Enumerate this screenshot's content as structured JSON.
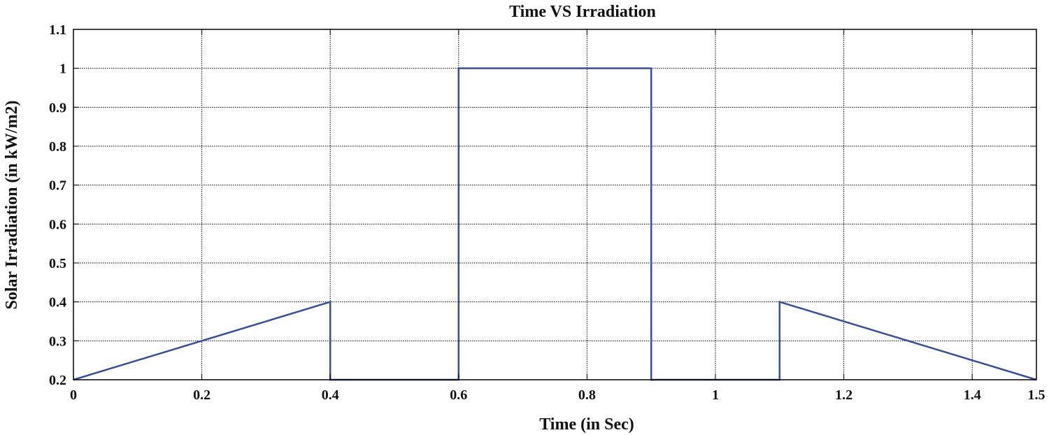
{
  "chart_data": {
    "type": "line",
    "title": "Time VS Irradiation",
    "xlabel": "Time (in Sec)",
    "ylabel": "Solar Irradiation (in kW/m2)",
    "xlim": [
      0,
      1.5
    ],
    "ylim": [
      0.2,
      1.1
    ],
    "xticks": [
      0,
      0.2,
      0.4,
      0.6,
      0.8,
      1,
      1.2,
      1.4,
      1.5
    ],
    "yticks": [
      0.2,
      0.3,
      0.4,
      0.5,
      0.6,
      0.7,
      0.8,
      0.9,
      1,
      1.1
    ],
    "xtick_labels": [
      "0",
      "0.2",
      "0.4",
      "0.6",
      "0.8",
      "1",
      "1.2",
      "1.4",
      "1.5"
    ],
    "ytick_labels": [
      "0.2",
      "0.3",
      "0.4",
      "0.5",
      "0.6",
      "0.7",
      "0.8",
      "0.9",
      "1",
      "1.1"
    ],
    "grid": true,
    "series": [
      {
        "color": "#3a4f9c",
        "x": [
          0,
          0.4,
          0.4,
          0.6,
          0.6,
          0.9,
          0.9,
          1.1,
          1.1,
          1.5
        ],
        "y": [
          0.2,
          0.4,
          0.2,
          0.2,
          1.0,
          1.0,
          0.2,
          0.2,
          0.4,
          0.2
        ]
      }
    ]
  }
}
